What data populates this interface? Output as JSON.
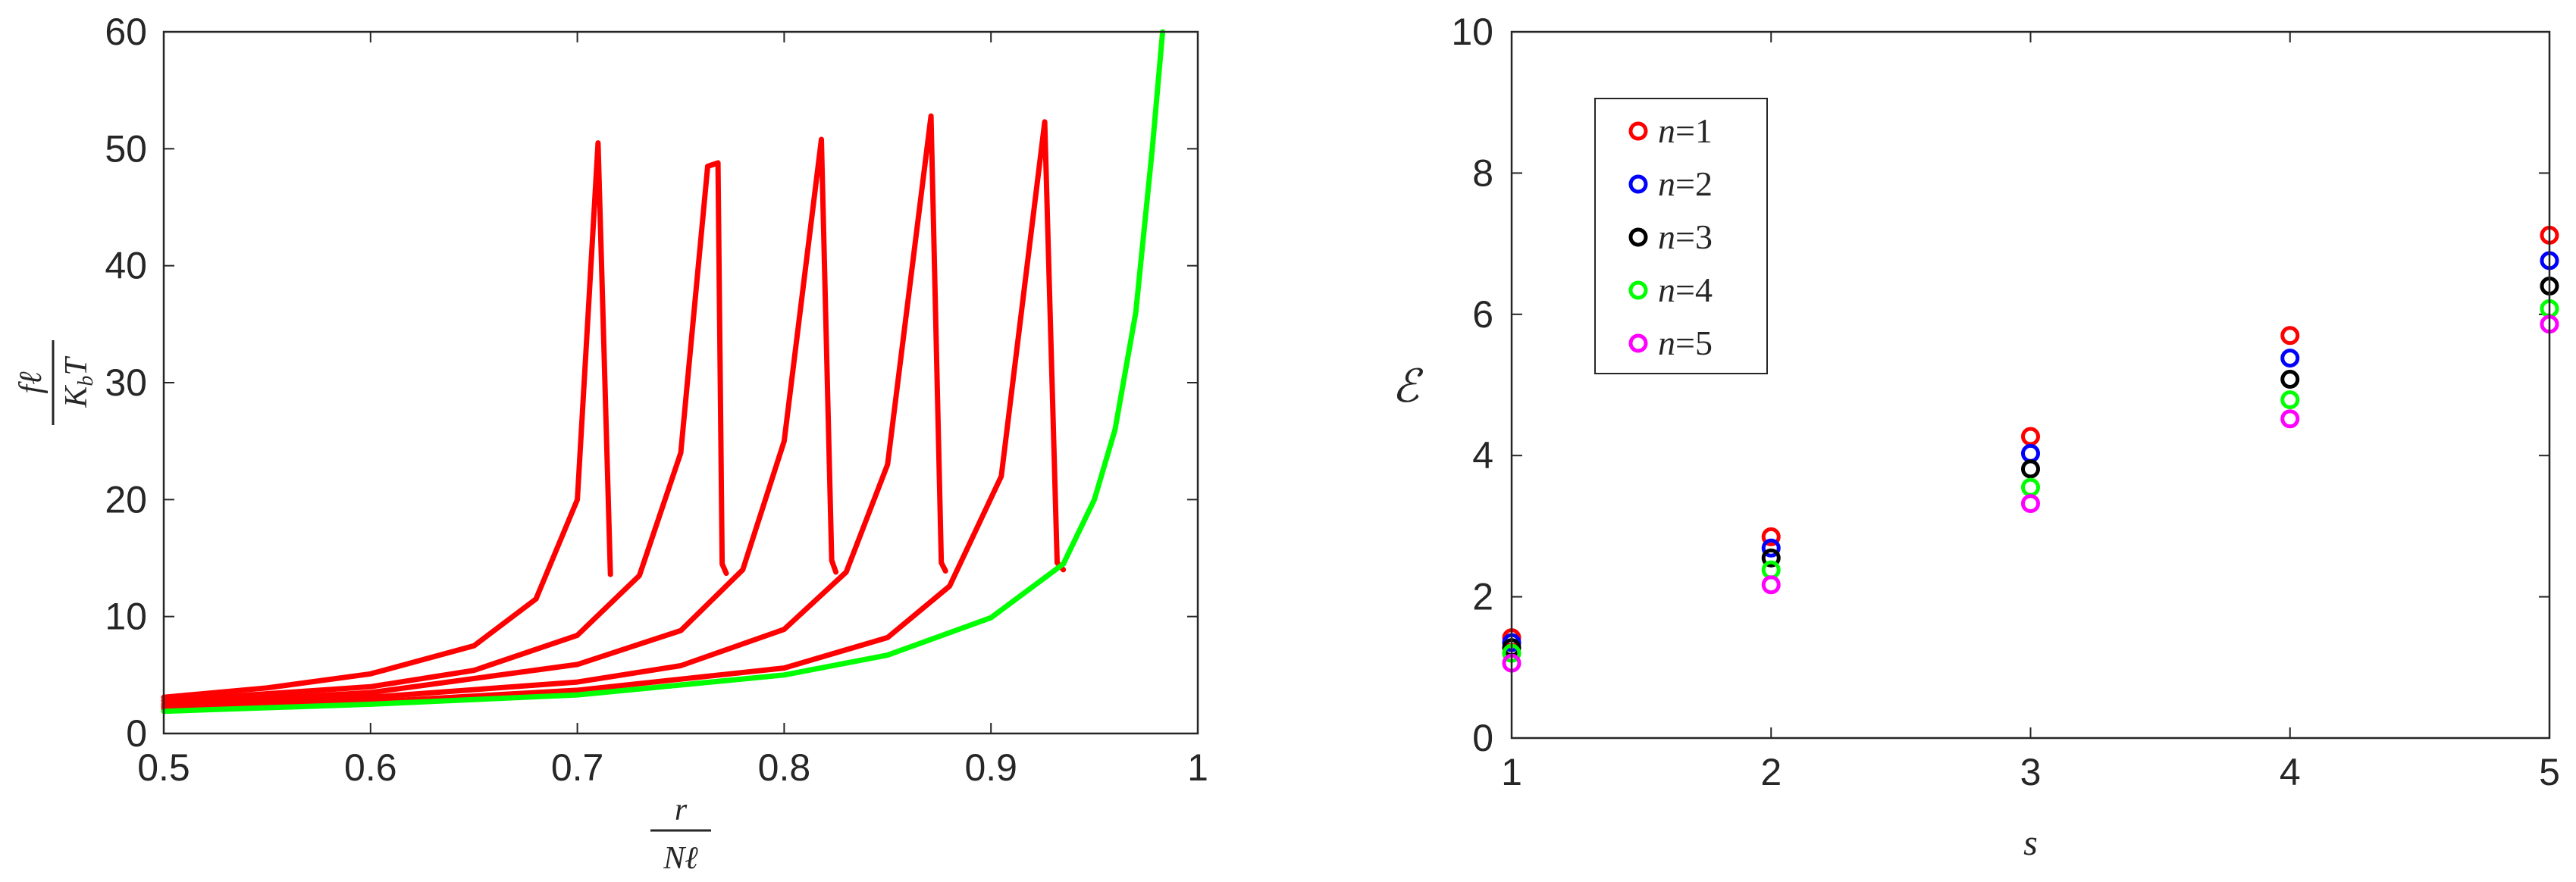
{
  "chart_data": [
    {
      "type": "line",
      "xlabel": {
        "num": "r",
        "den": "Nℓ"
      },
      "ylabel": {
        "num": "fℓ",
        "den_main": "K",
        "den_sub": "b",
        "den_tail": "T"
      },
      "xlim": [
        0.5,
        1.0
      ],
      "ylim": [
        0,
        60
      ],
      "x_ticks": [
        "0.5",
        "0.6",
        "0.7",
        "0.8",
        "0.9",
        "1"
      ],
      "y_ticks": [
        "0",
        "10",
        "20",
        "30",
        "40",
        "50",
        "60"
      ],
      "grid": false,
      "colors": {
        "unfolding": "#ff0000",
        "final": "#00ff00"
      },
      "series": [
        {
          "color": "#ff0000",
          "points": [
            [
              0.5,
              3.1
            ],
            [
              0.55,
              3.9
            ],
            [
              0.6,
              5.1
            ],
            [
              0.65,
              7.5
            ],
            [
              0.68,
              11.5
            ],
            [
              0.7,
              20
            ],
            [
              0.71,
              50.5
            ],
            [
              0.716,
              13.6
            ]
          ]
        },
        {
          "color": "#ff0000",
          "points": [
            [
              0.5,
              2.8
            ],
            [
              0.6,
              4.0
            ],
            [
              0.65,
              5.4
            ],
            [
              0.7,
              8.4
            ],
            [
              0.73,
              13.5
            ],
            [
              0.75,
              24
            ],
            [
              0.763,
              48.5
            ],
            [
              0.768,
              48.8
            ],
            [
              0.77,
              14.5
            ],
            [
              0.772,
              13.7
            ]
          ]
        },
        {
          "color": "#ff0000",
          "points": [
            [
              0.5,
              2.5
            ],
            [
              0.6,
              3.5
            ],
            [
              0.7,
              5.9
            ],
            [
              0.75,
              8.8
            ],
            [
              0.78,
              14
            ],
            [
              0.8,
              25
            ],
            [
              0.818,
              50.8
            ],
            [
              0.823,
              14.8
            ],
            [
              0.825,
              13.8
            ]
          ]
        },
        {
          "color": "#ff0000",
          "points": [
            [
              0.5,
              2.3
            ],
            [
              0.6,
              3.1
            ],
            [
              0.7,
              4.4
            ],
            [
              0.75,
              5.8
            ],
            [
              0.8,
              8.9
            ],
            [
              0.83,
              13.8
            ],
            [
              0.85,
              23
            ],
            [
              0.871,
              52.8
            ],
            [
              0.876,
              14.6
            ],
            [
              0.878,
              13.9
            ]
          ]
        },
        {
          "color": "#ff0000",
          "points": [
            [
              0.5,
              2.1
            ],
            [
              0.6,
              2.7
            ],
            [
              0.7,
              3.7
            ],
            [
              0.8,
              5.6
            ],
            [
              0.85,
              8.2
            ],
            [
              0.88,
              12.6
            ],
            [
              0.905,
              22
            ],
            [
              0.926,
              52.3
            ],
            [
              0.932,
              14.6
            ],
            [
              0.935,
              14.0
            ]
          ]
        },
        {
          "color": "#00ff00",
          "points": [
            [
              0.5,
              1.9
            ],
            [
              0.6,
              2.5
            ],
            [
              0.7,
              3.3
            ],
            [
              0.8,
              5.0
            ],
            [
              0.85,
              6.7
            ],
            [
              0.9,
              9.9
            ],
            [
              0.935,
              14.5
            ],
            [
              0.95,
              20
            ],
            [
              0.96,
              26
            ],
            [
              0.97,
              36
            ],
            [
              0.978,
              50
            ],
            [
              0.983,
              60
            ]
          ]
        }
      ]
    },
    {
      "type": "scatter",
      "xlabel": "s",
      "ylabel": "ℰ",
      "xlim": [
        1,
        5
      ],
      "ylim": [
        0,
        10
      ],
      "x_ticks": [
        "1",
        "2",
        "3",
        "4",
        "5"
      ],
      "y_ticks": [
        "0",
        "2",
        "4",
        "6",
        "8",
        "10"
      ],
      "grid": false,
      "legend_position": "top-left",
      "x": [
        1,
        2,
        3,
        4,
        5
      ],
      "series": [
        {
          "name": "n=1",
          "var": "n",
          "eq": "=1",
          "color": "#ff0000",
          "values": [
            1.42,
            2.85,
            4.27,
            5.7,
            7.12
          ]
        },
        {
          "name": "n=2",
          "var": "n",
          "eq": "=2",
          "color": "#0000ff",
          "values": [
            1.35,
            2.69,
            4.03,
            5.38,
            6.76
          ]
        },
        {
          "name": "n=3",
          "var": "n",
          "eq": "=3",
          "color": "#000000",
          "values": [
            1.28,
            2.55,
            3.81,
            5.08,
            6.4
          ]
        },
        {
          "name": "n=4",
          "var": "n",
          "eq": "=4",
          "color": "#00ff00",
          "values": [
            1.2,
            2.38,
            3.55,
            4.79,
            6.08
          ]
        },
        {
          "name": "n=5",
          "var": "n",
          "eq": "=5",
          "color": "#ff00ff",
          "values": [
            1.06,
            2.17,
            3.32,
            4.52,
            5.86
          ]
        }
      ]
    }
  ]
}
